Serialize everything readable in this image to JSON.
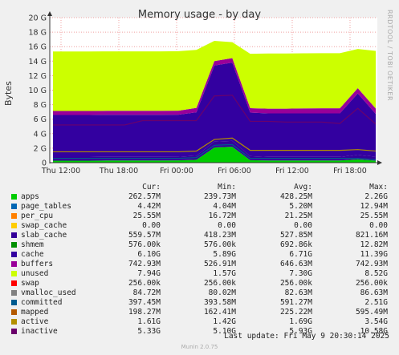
{
  "title": "Memory usage - by day",
  "ylabel": "Bytes",
  "side_text": "RRDTOOL / TOBI OETIKER",
  "columns": [
    "Cur:",
    "Min:",
    "Avg:",
    "Max:"
  ],
  "last_update": "Last update:  Fri May  9 20:30:14 2025",
  "version": "Munin 2.0.75",
  "legend": [
    {
      "name": "apps",
      "color": "#00cc00",
      "cur": "262.57M",
      "min": "239.73M",
      "avg": "428.25M",
      "max": "2.26G"
    },
    {
      "name": "page_tables",
      "color": "#0066b3",
      "cur": "4.42M",
      "min": "4.04M",
      "avg": "5.20M",
      "max": "12.94M"
    },
    {
      "name": "per_cpu",
      "color": "#ff8000",
      "cur": "25.55M",
      "min": "16.72M",
      "avg": "21.25M",
      "max": "25.55M"
    },
    {
      "name": "swap_cache",
      "color": "#ffcc00",
      "cur": "0.00",
      "min": "0.00",
      "avg": "0.00",
      "max": "0.00"
    },
    {
      "name": "slab_cache",
      "color": "#330099",
      "cur": "559.57M",
      "min": "418.23M",
      "avg": "527.85M",
      "max": "821.16M"
    },
    {
      "name": "shmem",
      "color": "#008f00",
      "cur": "576.00k",
      "min": "576.00k",
      "avg": "692.86k",
      "max": "12.82M"
    },
    {
      "name": "cache",
      "color": "#3300a0",
      "cur": "6.10G",
      "min": "5.89G",
      "avg": "6.71G",
      "max": "11.39G"
    },
    {
      "name": "buffers",
      "color": "#990099",
      "cur": "742.93M",
      "min": "526.91M",
      "avg": "646.63M",
      "max": "742.93M"
    },
    {
      "name": "unused",
      "color": "#ccff00",
      "cur": "7.94G",
      "min": "1.57G",
      "avg": "7.30G",
      "max": "8.52G"
    },
    {
      "name": "swap",
      "color": "#ff0000",
      "cur": "256.00k",
      "min": "256.00k",
      "avg": "256.00k",
      "max": "256.00k"
    },
    {
      "name": "vmalloc_used",
      "color": "#808080",
      "cur": "84.72M",
      "min": "80.02M",
      "avg": "82.63M",
      "max": "86.63M"
    },
    {
      "name": "committed",
      "color": "#005b8f",
      "cur": "397.45M",
      "min": "393.58M",
      "avg": "591.27M",
      "max": "2.51G"
    },
    {
      "name": "mapped",
      "color": "#b35900",
      "cur": "198.27M",
      "min": "162.41M",
      "avg": "225.22M",
      "max": "595.49M"
    },
    {
      "name": "active",
      "color": "#b38f00",
      "cur": "1.61G",
      "min": "1.42G",
      "avg": "1.69G",
      "max": "3.54G"
    },
    {
      "name": "inactive",
      "color": "#6b006b",
      "cur": "5.33G",
      "min": "5.10G",
      "avg": "5.93G",
      "max": "10.58G"
    }
  ],
  "chart_data": {
    "type": "area",
    "title": "Memory usage - by day",
    "ylabel": "Bytes",
    "y_ticks": [
      "0",
      "2 G",
      "4 G",
      "6 G",
      "8 G",
      "10 G",
      "12 G",
      "14 G",
      "16 G",
      "18 G",
      "20 G"
    ],
    "ylim": [
      0,
      20
    ],
    "x_ticks": [
      "Thu 12:00",
      "Thu 18:00",
      "Fri 00:00",
      "Fri 06:00",
      "Fri 12:00",
      "Fri 18:00"
    ],
    "grid": true,
    "series": [
      {
        "name": "apps",
        "values": [
          0.28,
          0.28,
          0.28,
          0.3,
          0.3,
          0.3,
          0.3,
          0.32,
          0.4,
          2.1,
          2.2,
          0.35,
          0.3,
          0.3,
          0.3,
          0.3,
          0.3,
          0.45,
          0.28
        ]
      },
      {
        "name": "slab_cache",
        "values": [
          0.5,
          0.5,
          0.5,
          0.5,
          0.5,
          0.5,
          0.5,
          0.5,
          0.55,
          0.8,
          0.8,
          0.55,
          0.5,
          0.5,
          0.5,
          0.5,
          0.5,
          0.6,
          0.55
        ]
      },
      {
        "name": "cache",
        "values": [
          5.8,
          5.8,
          5.8,
          5.8,
          5.8,
          5.8,
          5.8,
          5.8,
          6.0,
          10.5,
          10.8,
          6.0,
          6.0,
          6.0,
          6.0,
          6.0,
          6.0,
          8.5,
          5.9
        ]
      },
      {
        "name": "buffers",
        "values": [
          0.55,
          0.55,
          0.55,
          0.55,
          0.55,
          0.55,
          0.55,
          0.55,
          0.6,
          0.6,
          0.62,
          0.62,
          0.65,
          0.65,
          0.68,
          0.7,
          0.7,
          0.72,
          0.74
        ]
      },
      {
        "name": "unused",
        "values": [
          8.2,
          8.2,
          8.2,
          8.2,
          8.2,
          8.2,
          8.2,
          8.2,
          8.0,
          2.8,
          2.2,
          7.5,
          7.6,
          7.6,
          7.6,
          7.6,
          7.6,
          5.4,
          7.94
        ]
      },
      {
        "name": "committed",
        "values": [
          0.6,
          0.6,
          0.6,
          0.6,
          0.6,
          0.6,
          0.6,
          0.6,
          0.7,
          2.4,
          2.5,
          0.6,
          0.6,
          0.6,
          0.6,
          0.6,
          0.6,
          0.6,
          0.4
        ]
      },
      {
        "name": "active",
        "values": [
          1.5,
          1.5,
          1.5,
          1.5,
          1.5,
          1.5,
          1.5,
          1.5,
          1.6,
          3.2,
          3.4,
          1.7,
          1.7,
          1.7,
          1.7,
          1.7,
          1.7,
          1.8,
          1.61
        ]
      },
      {
        "name": "inactive",
        "values": [
          5.2,
          5.2,
          5.2,
          5.2,
          5.2,
          5.8,
          5.8,
          5.8,
          5.8,
          9.2,
          9.3,
          5.7,
          5.7,
          5.6,
          5.6,
          5.6,
          5.4,
          7.5,
          5.33
        ]
      }
    ]
  }
}
